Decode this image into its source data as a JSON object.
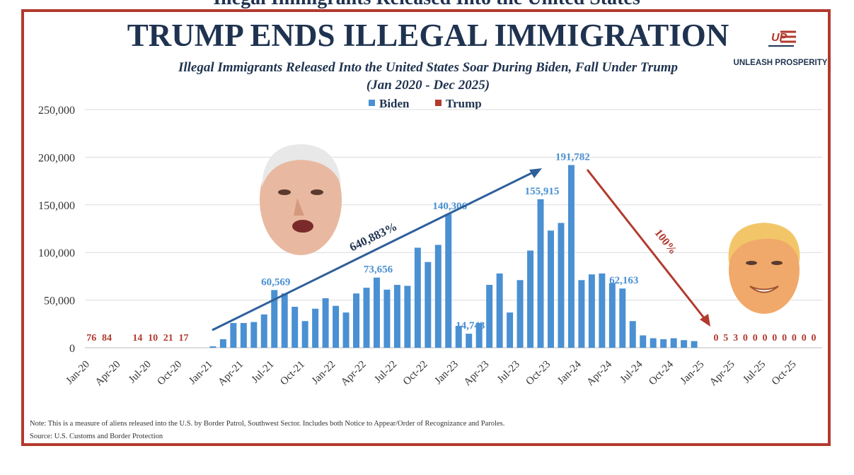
{
  "header": {
    "top_cut_text": "Illegal Immigrants Released Into the United States"
  },
  "logo": {
    "mark": "UP",
    "text": "UNLEASH PROSPERITY"
  },
  "notes": {
    "note": "Note: This is a measure of aliens released into the U.S. by Border Patrol, Southwest Sector. Includes both Notice to Appear/Order of Recognizance and Paroles.",
    "source": "Source: U.S. Customs and Border Protection"
  },
  "annotations": {
    "biden_growth": "640,883%",
    "trump_decline": "100%"
  },
  "colors": {
    "biden": "#4a90d2",
    "trump": "#b23a2e",
    "frame": "#b23a2e",
    "title": "#1f3350"
  },
  "chart_data": {
    "type": "bar",
    "title": "TRUMP ENDS ILLEGAL IMMIGRATION",
    "subtitle": "Illegal Immigrants Released Into the United States Soar During Biden, Fall Under Trump",
    "date_range": "(Jan 2020 - Dec 2025)",
    "xlabel": "",
    "ylabel": "",
    "ylim": [
      0,
      250000
    ],
    "yticks": [
      0,
      50000,
      100000,
      150000,
      200000,
      250000
    ],
    "ytick_labels": [
      "0",
      "50,000",
      "100,000",
      "150,000",
      "200,000",
      "250,000"
    ],
    "xtick_labels": [
      "Jan-20",
      "Apr-20",
      "Jul-20",
      "Oct-20",
      "Jan-21",
      "Apr-21",
      "Jul-21",
      "Oct-21",
      "Jan-22",
      "Apr-22",
      "Jul-22",
      "Oct-22",
      "Jan-23",
      "Apr-23",
      "Jul-23",
      "Oct-23",
      "Jan-24",
      "Apr-24",
      "Jul-24",
      "Oct-24",
      "Jan-25",
      "Apr-25",
      "Jul-25",
      "Oct-25"
    ],
    "legend": [
      "Biden",
      "Trump"
    ],
    "legend_position": "top",
    "grid": true,
    "trump_first_labels": [
      "76",
      "84",
      "",
      "14",
      "10",
      "21",
      "17"
    ],
    "trump_last_labels": [
      "0",
      "5",
      "3",
      "0",
      "0",
      "0",
      "0",
      "0",
      "0",
      "0",
      "0"
    ],
    "series": [
      {
        "name": "Trump 1",
        "values": [
          76,
          84,
          0,
          14,
          10,
          21,
          17,
          0,
          0,
          0,
          0,
          0
        ]
      },
      {
        "name": "Biden",
        "values": [
          1500,
          9000,
          26000,
          26000,
          27000,
          35000,
          60569,
          57000,
          43000,
          28000,
          41000,
          52000,
          44000,
          37000,
          57000,
          63000,
          73656,
          61000,
          66000,
          65000,
          105000,
          90000,
          108000,
          140306,
          23000,
          14743,
          26000,
          66000,
          78000,
          37000,
          71000,
          102000,
          155915,
          123000,
          131000,
          191782,
          71000,
          77000,
          78000,
          68000,
          62163,
          28000,
          13000,
          10000,
          9000,
          10000,
          8000,
          7000
        ]
      },
      {
        "name": "Trump 2",
        "values": [
          2000,
          0,
          5,
          3,
          0,
          0,
          0,
          0,
          0,
          0,
          0,
          0
        ]
      }
    ],
    "data_labels": [
      {
        "text": "60,569",
        "index": 18
      },
      {
        "text": "73,656",
        "index": 28
      },
      {
        "text": "140,306",
        "index": 35
      },
      {
        "text": "14,743",
        "index": 37
      },
      {
        "text": "155,915",
        "index": 44
      },
      {
        "text": "191,782",
        "index": 47
      },
      {
        "text": "62,163",
        "index": 52
      }
    ]
  }
}
